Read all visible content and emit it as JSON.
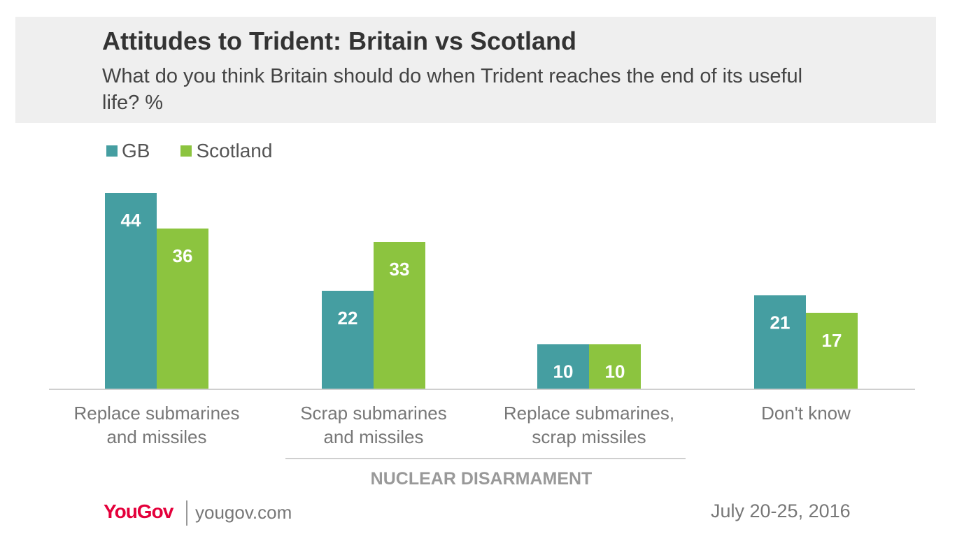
{
  "header": {
    "title": "Attitudes to Trident: Britain vs Scotland",
    "subtitle": "What do you think Britain should do when Trident reaches the end of its useful life? %"
  },
  "colors": {
    "gb": "#459ea1",
    "scotland": "#8cc43f",
    "axis": "#cfcfcf",
    "label": "#777777",
    "brand": "#e4003b"
  },
  "chart_data": {
    "type": "bar",
    "title": "Attitudes to Trident: Britain vs Scotland",
    "categories": [
      [
        "Replace submarines",
        "and missiles"
      ],
      [
        "Scrap submarines",
        "and missiles"
      ],
      [
        "Replace submarines,",
        "scrap missiles"
      ],
      [
        "Don't know"
      ]
    ],
    "series": [
      {
        "name": "GB",
        "values": [
          44,
          22,
          10,
          21
        ]
      },
      {
        "name": "Scotland",
        "values": [
          36,
          33,
          10,
          17
        ]
      }
    ],
    "group_annotation": "NUCLEAR DISARMAMENT",
    "xlabel": "",
    "ylabel": "%",
    "ylim": [
      0,
      50
    ],
    "grid": false
  },
  "footer": {
    "logo": "YouGov",
    "url": "yougov.com",
    "date": "July 20-25, 2016"
  }
}
